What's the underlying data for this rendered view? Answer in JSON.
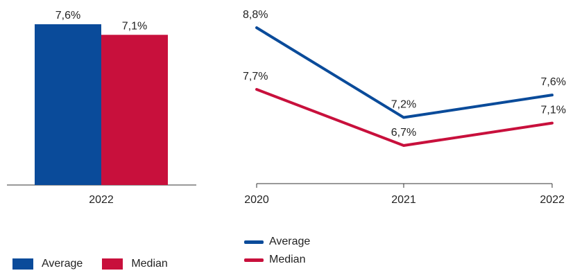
{
  "colors": {
    "average": "#0a4b9a",
    "median": "#c8103c",
    "axis": "#333333"
  },
  "chart_data": [
    {
      "type": "bar",
      "categories": [
        "2022"
      ],
      "series": [
        {
          "name": "Average",
          "values": [
            7.6
          ],
          "labels": [
            "7,6%"
          ]
        },
        {
          "name": "Median",
          "values": [
            7.1
          ],
          "labels": [
            "7,1%"
          ]
        }
      ],
      "ylim": [
        0,
        7.6
      ],
      "grid": false,
      "legend": "bottom"
    },
    {
      "type": "line",
      "x": [
        "2020",
        "2021",
        "2022"
      ],
      "series": [
        {
          "name": "Average",
          "values": [
            8.8,
            7.2,
            7.6
          ],
          "labels": [
            "8,8%",
            "7,2%",
            "7,6%"
          ]
        },
        {
          "name": "Median",
          "values": [
            7.7,
            6.7,
            7.1
          ],
          "labels": [
            "7,7%",
            "6,7%",
            "7,1%"
          ]
        }
      ],
      "grid": false,
      "legend": "bottom-left"
    }
  ]
}
